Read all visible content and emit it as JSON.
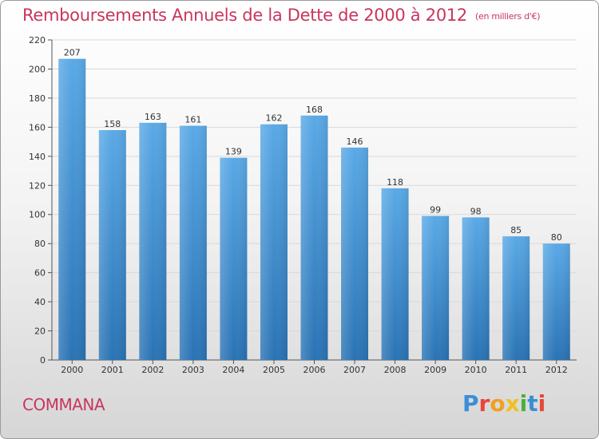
{
  "header": {
    "title": "Remboursements Annuels de la Dette de 2000 à 2012",
    "unit": "(en milliers d'€)"
  },
  "footer": {
    "commune": "COMMANA",
    "logo": "Proxiti"
  },
  "colors": {
    "accent": "#c8365e",
    "bar_top": "#5aa9e6",
    "bar_bottom": "#2a73b4",
    "grid": "#d9d9d9"
  },
  "chart_data": {
    "type": "bar",
    "title": "Remboursements Annuels de la Dette de 2000 à 2012",
    "xlabel": "",
    "ylabel": "(en milliers d'€)",
    "categories": [
      "2000",
      "2001",
      "2002",
      "2003",
      "2004",
      "2005",
      "2006",
      "2007",
      "2008",
      "2009",
      "2010",
      "2011",
      "2012"
    ],
    "values": [
      207,
      158,
      163,
      161,
      139,
      162,
      168,
      146,
      118,
      99,
      98,
      85,
      80
    ],
    "ylim": [
      0,
      220
    ],
    "yticks": [
      0,
      20,
      40,
      60,
      80,
      100,
      120,
      140,
      160,
      180,
      200,
      220
    ],
    "grid": true,
    "show_data_labels": true
  }
}
